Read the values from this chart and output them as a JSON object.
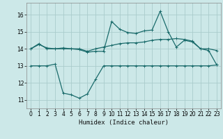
{
  "title": "",
  "xlabel": "Humidex (Indice chaleur)",
  "bg_color": "#cce8e8",
  "grid_color": "#aacccc",
  "line_color": "#1a6b6b",
  "xlim": [
    -0.5,
    23.5
  ],
  "ylim": [
    10.5,
    16.7
  ],
  "yticks": [
    11,
    12,
    13,
    14,
    15,
    16
  ],
  "xticks": [
    0,
    1,
    2,
    3,
    4,
    5,
    6,
    7,
    8,
    9,
    10,
    11,
    12,
    13,
    14,
    15,
    16,
    17,
    18,
    19,
    20,
    21,
    22,
    23
  ],
  "series1_x": [
    0,
    1,
    2,
    3,
    4,
    5,
    6,
    7,
    8,
    9,
    10,
    11,
    12,
    13,
    14,
    15,
    16,
    17,
    18,
    19,
    20,
    21,
    22,
    23
  ],
  "series1_y": [
    14.0,
    14.25,
    14.05,
    14.0,
    14.0,
    14.0,
    14.0,
    13.85,
    14.0,
    14.1,
    14.2,
    14.3,
    14.35,
    14.35,
    14.4,
    14.5,
    14.55,
    14.55,
    14.6,
    14.55,
    14.45,
    14.0,
    14.0,
    13.9
  ],
  "series2_x": [
    0,
    1,
    2,
    3,
    4,
    5,
    6,
    7,
    8,
    9,
    10,
    11,
    12,
    13,
    14,
    15,
    16,
    17,
    18,
    19,
    20,
    21,
    22,
    23
  ],
  "series2_y": [
    14.0,
    14.3,
    14.0,
    14.0,
    14.05,
    14.0,
    13.95,
    13.8,
    13.85,
    13.85,
    15.6,
    15.15,
    14.95,
    14.9,
    15.05,
    15.1,
    16.2,
    15.0,
    14.1,
    14.5,
    14.4,
    14.0,
    13.9,
    13.05
  ],
  "series3_x": [
    0,
    1,
    2,
    3,
    4,
    5,
    6,
    7,
    8,
    9,
    10,
    11,
    12,
    13,
    14,
    15,
    16,
    17,
    18,
    19,
    20,
    21,
    22,
    23
  ],
  "series3_y": [
    13.0,
    13.0,
    13.0,
    13.1,
    11.4,
    11.3,
    11.1,
    11.35,
    12.2,
    13.0,
    13.0,
    13.0,
    13.0,
    13.0,
    13.0,
    13.0,
    13.0,
    13.0,
    13.0,
    13.0,
    13.0,
    13.0,
    13.0,
    13.05
  ]
}
